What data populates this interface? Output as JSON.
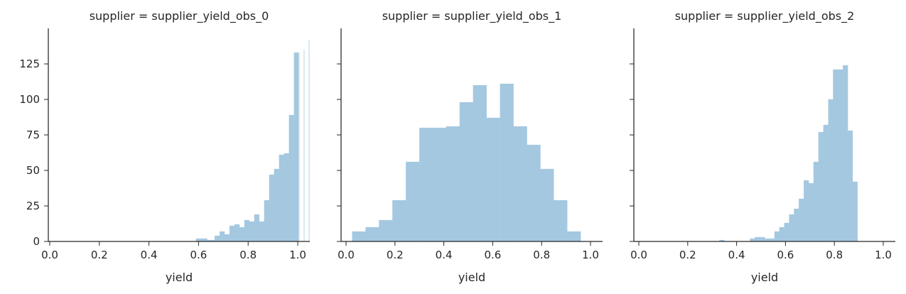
{
  "chart_data": [
    {
      "type": "bar",
      "title": "supplier = supplier_yield_obs_0",
      "xlabel": "yield",
      "ylabel": "",
      "xlim": [
        -0.05,
        1.05
      ],
      "ylim": [
        0,
        150
      ],
      "xticks": [
        "0.0",
        "0.2",
        "0.4",
        "0.6",
        "0.8",
        "1.0"
      ],
      "yticks": [
        "0",
        "25",
        "50",
        "75",
        "100",
        "125"
      ],
      "bar_color": "#a4c8e0",
      "bins": [
        {
          "x0": 0.59,
          "x1": 0.61,
          "value": 2
        },
        {
          "x0": 0.61,
          "x1": 0.635,
          "value": 2
        },
        {
          "x0": 0.635,
          "x1": 0.665,
          "value": 1
        },
        {
          "x0": 0.665,
          "x1": 0.685,
          "value": 4
        },
        {
          "x0": 0.685,
          "x1": 0.705,
          "value": 7
        },
        {
          "x0": 0.705,
          "x1": 0.725,
          "value": 5
        },
        {
          "x0": 0.725,
          "x1": 0.745,
          "value": 11
        },
        {
          "x0": 0.745,
          "x1": 0.765,
          "value": 12
        },
        {
          "x0": 0.765,
          "x1": 0.785,
          "value": 10
        },
        {
          "x0": 0.785,
          "x1": 0.805,
          "value": 15
        },
        {
          "x0": 0.805,
          "x1": 0.825,
          "value": 14
        },
        {
          "x0": 0.825,
          "x1": 0.845,
          "value": 19
        },
        {
          "x0": 0.845,
          "x1": 0.865,
          "value": 14
        },
        {
          "x0": 0.865,
          "x1": 0.885,
          "value": 29
        },
        {
          "x0": 0.885,
          "x1": 0.905,
          "value": 47
        },
        {
          "x0": 0.905,
          "x1": 0.925,
          "value": 51
        },
        {
          "x0": 0.925,
          "x1": 0.945,
          "value": 61
        },
        {
          "x0": 0.945,
          "x1": 0.965,
          "value": 62
        },
        {
          "x0": 0.965,
          "x1": 0.985,
          "value": 89
        },
        {
          "x0": 0.985,
          "x1": 1.005,
          "value": 133
        },
        {
          "x0": 1.005,
          "x1": 1.025,
          "value": 133
        },
        {
          "x0": 1.025,
          "x1": 1.045,
          "value": 135
        },
        {
          "x0": 1.045,
          "x1": 1.065,
          "value": 142
        }
      ]
    },
    {
      "type": "bar",
      "title": "supplier = supplier_yield_obs_1",
      "xlabel": "yield",
      "ylabel": "",
      "xlim": [
        -0.02,
        1.03
      ],
      "ylim": [
        0,
        150
      ],
      "xticks": [
        "0.0",
        "0.2",
        "0.4",
        "0.6",
        "0.8",
        "1.0"
      ],
      "yticks": [
        "0",
        "25",
        "50",
        "75",
        "100",
        "125"
      ],
      "bar_color": "#a4c8e0",
      "bins": [
        {
          "x0": 0.025,
          "x1": 0.08,
          "value": 7
        },
        {
          "x0": 0.08,
          "x1": 0.135,
          "value": 10
        },
        {
          "x0": 0.135,
          "x1": 0.19,
          "value": 15
        },
        {
          "x0": 0.19,
          "x1": 0.245,
          "value": 29
        },
        {
          "x0": 0.245,
          "x1": 0.3,
          "value": 56
        },
        {
          "x0": 0.3,
          "x1": 0.355,
          "value": 80
        },
        {
          "x0": 0.355,
          "x1": 0.41,
          "value": 80
        },
        {
          "x0": 0.41,
          "x1": 0.465,
          "value": 81
        },
        {
          "x0": 0.465,
          "x1": 0.52,
          "value": 98
        },
        {
          "x0": 0.52,
          "x1": 0.575,
          "value": 110
        },
        {
          "x0": 0.575,
          "x1": 0.63,
          "value": 87
        },
        {
          "x0": 0.63,
          "x1": 0.685,
          "value": 111
        },
        {
          "x0": 0.685,
          "x1": 0.74,
          "value": 81
        },
        {
          "x0": 0.74,
          "x1": 0.795,
          "value": 68
        },
        {
          "x0": 0.795,
          "x1": 0.85,
          "value": 51
        },
        {
          "x0": 0.85,
          "x1": 0.905,
          "value": 29
        },
        {
          "x0": 0.905,
          "x1": 0.96,
          "value": 7
        }
      ]
    },
    {
      "type": "bar",
      "title": "supplier = supplier_yield_obs_2",
      "xlabel": "yield",
      "ylabel": "",
      "xlim": [
        -0.02,
        1.03
      ],
      "ylim": [
        0,
        150
      ],
      "xticks": [
        "0.0",
        "0.2",
        "0.4",
        "0.6",
        "0.8",
        "1.0"
      ],
      "yticks": [
        "0",
        "25",
        "50",
        "75",
        "100",
        "125"
      ],
      "bar_color": "#a4c8e0",
      "bins": [
        {
          "x0": 0.33,
          "x1": 0.35,
          "value": 1
        },
        {
          "x0": 0.455,
          "x1": 0.475,
          "value": 2
        },
        {
          "x0": 0.475,
          "x1": 0.495,
          "value": 3
        },
        {
          "x0": 0.495,
          "x1": 0.515,
          "value": 3
        },
        {
          "x0": 0.515,
          "x1": 0.535,
          "value": 2
        },
        {
          "x0": 0.535,
          "x1": 0.555,
          "value": 2
        },
        {
          "x0": 0.555,
          "x1": 0.575,
          "value": 7
        },
        {
          "x0": 0.575,
          "x1": 0.595,
          "value": 10
        },
        {
          "x0": 0.595,
          "x1": 0.615,
          "value": 13
        },
        {
          "x0": 0.615,
          "x1": 0.635,
          "value": 19
        },
        {
          "x0": 0.635,
          "x1": 0.655,
          "value": 23
        },
        {
          "x0": 0.655,
          "x1": 0.675,
          "value": 30
        },
        {
          "x0": 0.675,
          "x1": 0.695,
          "value": 43
        },
        {
          "x0": 0.695,
          "x1": 0.715,
          "value": 41
        },
        {
          "x0": 0.715,
          "x1": 0.735,
          "value": 56
        },
        {
          "x0": 0.735,
          "x1": 0.755,
          "value": 77
        },
        {
          "x0": 0.755,
          "x1": 0.775,
          "value": 82
        },
        {
          "x0": 0.775,
          "x1": 0.795,
          "value": 100
        },
        {
          "x0": 0.795,
          "x1": 0.815,
          "value": 121
        },
        {
          "x0": 0.815,
          "x1": 0.835,
          "value": 121
        },
        {
          "x0": 0.835,
          "x1": 0.855,
          "value": 124
        },
        {
          "x0": 0.855,
          "x1": 0.875,
          "value": 78
        },
        {
          "x0": 0.875,
          "x1": 0.895,
          "value": 42
        }
      ]
    }
  ]
}
